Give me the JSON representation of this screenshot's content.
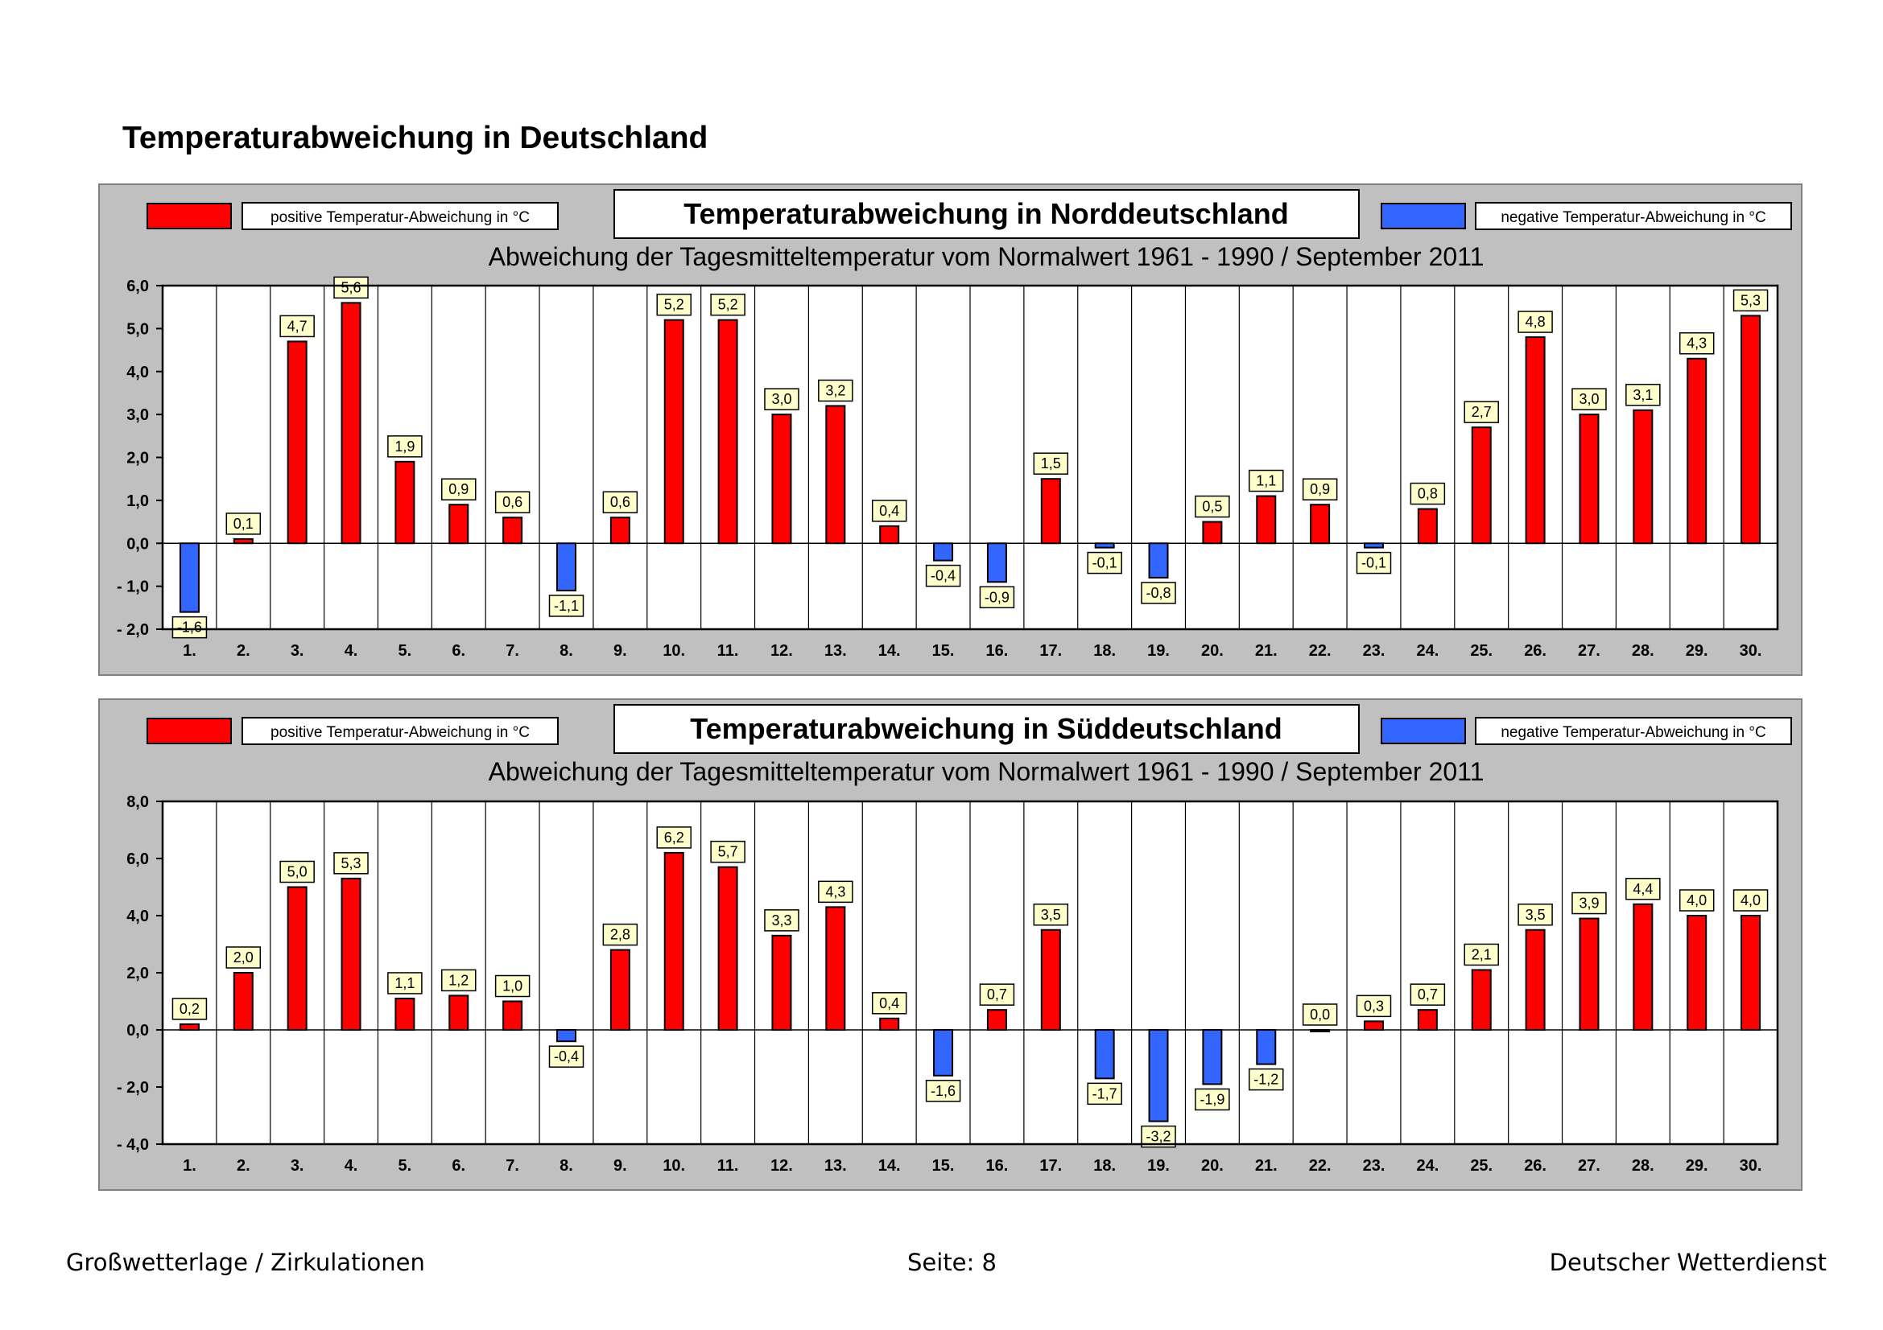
{
  "page": {
    "title": "Temperaturabweichung in Deutschland",
    "footer_left": "Großwetterlage / Zirkulationen",
    "footer_center": "Seite: 8",
    "footer_right": "Deutscher Wetterdienst"
  },
  "colors": {
    "positive": "#ff0000",
    "negative": "#3366ff",
    "panel_bg": "#c0c0c0",
    "label_bg": "#ffffcc"
  },
  "chart_data": [
    {
      "type": "bar",
      "title": "Temperaturabweichung in Norddeutschland",
      "subtitle": "Abweichung der Tagesmitteltemperatur vom Normalwert 1961 - 1990  /  September 2011",
      "legend_positive": "positive Temperatur-Abweichung in °C",
      "legend_negative": "negative Temperatur-Abweichung in °C",
      "categories": [
        "1.",
        "2.",
        "3.",
        "4.",
        "5.",
        "6.",
        "7.",
        "8.",
        "9.",
        "10.",
        "11.",
        "12.",
        "13.",
        "14.",
        "15.",
        "16.",
        "17.",
        "18.",
        "19.",
        "20.",
        "21.",
        "22.",
        "23.",
        "24.",
        "25.",
        "26.",
        "27.",
        "28.",
        "29.",
        "30."
      ],
      "values": [
        -1.6,
        0.1,
        4.7,
        5.6,
        1.9,
        0.9,
        0.6,
        -1.1,
        0.6,
        5.2,
        5.2,
        3.0,
        3.2,
        0.4,
        -0.4,
        -0.9,
        1.5,
        -0.1,
        -0.8,
        0.5,
        1.1,
        0.9,
        -0.1,
        0.8,
        2.7,
        4.8,
        3.0,
        3.1,
        4.3,
        5.3
      ],
      "ylim": [
        -2,
        6
      ],
      "yticks": [
        6,
        5,
        4,
        3,
        2,
        1,
        0,
        -1,
        -2
      ],
      "ytick_labels": [
        "6,0",
        "5,0",
        "4,0",
        "3,0",
        "2,0",
        "1,0",
        "0,0",
        "- 1,0",
        "- 2,0"
      ]
    },
    {
      "type": "bar",
      "title": "Temperaturabweichung in Süddeutschland",
      "subtitle": "Abweichung der Tagesmitteltemperatur vom Normalwert 1961 - 1990  /  September 2011",
      "legend_positive": "positive Temperatur-Abweichung in °C",
      "legend_negative": "negative Temperatur-Abweichung in °C",
      "categories": [
        "1.",
        "2.",
        "3.",
        "4.",
        "5.",
        "6.",
        "7.",
        "8.",
        "9.",
        "10.",
        "11.",
        "12.",
        "13.",
        "14.",
        "15.",
        "16.",
        "17.",
        "18.",
        "19.",
        "20.",
        "21.",
        "22.",
        "23.",
        "24.",
        "25.",
        "26.",
        "27.",
        "28.",
        "29.",
        "30."
      ],
      "values": [
        0.2,
        2.0,
        5.0,
        5.3,
        1.1,
        1.2,
        1.0,
        -0.4,
        2.8,
        6.2,
        5.7,
        3.3,
        4.3,
        0.4,
        -1.6,
        0.7,
        3.5,
        -1.7,
        -3.2,
        -1.9,
        -1.2,
        0.0,
        0.3,
        0.7,
        2.1,
        3.5,
        3.9,
        4.4,
        4.0,
        4.0
      ],
      "ylim": [
        -4,
        8
      ],
      "yticks": [
        8,
        6,
        4,
        2,
        0,
        -2,
        -4
      ],
      "ytick_labels": [
        "8,0",
        "6,0",
        "4,0",
        "2,0",
        "0,0",
        "- 2,0",
        "- 4,0"
      ]
    }
  ]
}
